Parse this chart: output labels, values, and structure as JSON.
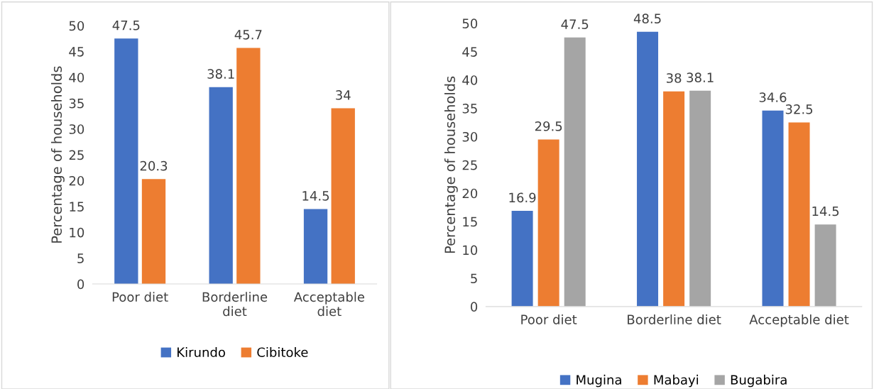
{
  "chart_data": [
    {
      "type": "bar",
      "ylabel": "Percentage of households",
      "categories": [
        "Poor diet",
        "Borderline\ndiet",
        "Acceptable\ndiet"
      ],
      "ylim": [
        0,
        50
      ],
      "yticks": [
        0,
        5,
        10,
        15,
        20,
        25,
        30,
        35,
        40,
        45,
        50
      ],
      "grid": false,
      "legend": "bottom",
      "data_labels": true,
      "series": [
        {
          "name": "Kirundo",
          "color": "#4472c4",
          "values": [
            47.5,
            38.1,
            14.5
          ]
        },
        {
          "name": "Cibitoke",
          "color": "#ed7d31",
          "values": [
            20.3,
            45.7,
            34
          ]
        }
      ]
    },
    {
      "type": "bar",
      "ylabel": "Percentage of households",
      "categories": [
        "Poor diet",
        "Borderline diet",
        "Acceptable diet"
      ],
      "ylim": [
        0,
        50
      ],
      "yticks": [
        0,
        5,
        10,
        15,
        20,
        25,
        30,
        35,
        40,
        45,
        50
      ],
      "grid": false,
      "legend": "bottom",
      "data_labels": true,
      "series": [
        {
          "name": "Mugina",
          "color": "#4472c4",
          "values": [
            16.9,
            48.5,
            34.6
          ]
        },
        {
          "name": "Mabayi",
          "color": "#ed7d31",
          "values": [
            29.5,
            38,
            32.5
          ]
        },
        {
          "name": "Bugabira",
          "color": "#a5a5a5",
          "values": [
            47.5,
            38.1,
            14.5
          ]
        }
      ]
    }
  ]
}
